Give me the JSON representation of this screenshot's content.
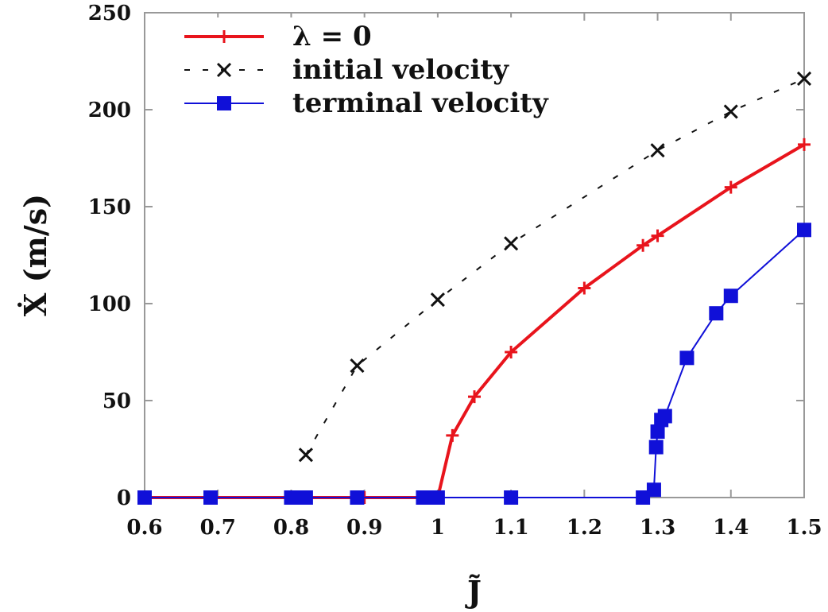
{
  "chart_data": {
    "type": "line",
    "title": "",
    "xlabel": "J̃",
    "ylabel": "Ẋ (m/s)",
    "xlim": [
      0.6,
      1.5
    ],
    "ylim": [
      0,
      250
    ],
    "xticks": [
      "0.6",
      "0.7",
      "0.8",
      "0.9",
      "1",
      "1.1",
      "1.2",
      "1.3",
      "1.4",
      "1.5"
    ],
    "yticks": [
      "0",
      "50",
      "100",
      "150",
      "200",
      "250"
    ],
    "grid": false,
    "legend_position": "top-left",
    "series": [
      {
        "name": "λ = 0",
        "color": "#e8141c",
        "style": "solid",
        "marker": "plus",
        "x": [
          0.6,
          0.69,
          0.8,
          0.9,
          0.98,
          1.0,
          1.02,
          1.05,
          1.1,
          1.2,
          1.28,
          1.3,
          1.4,
          1.5
        ],
        "y": [
          0,
          0,
          0,
          0,
          0,
          0,
          32,
          52,
          75,
          108,
          130,
          135,
          160,
          182
        ]
      },
      {
        "name": "initial velocity",
        "color": "#111111",
        "style": "dashed",
        "marker": "x",
        "x": [
          0.82,
          0.89,
          1.0,
          1.1,
          1.3,
          1.4,
          1.5
        ],
        "y": [
          22,
          68,
          102,
          131,
          179,
          199,
          216
        ]
      },
      {
        "name": "terminal velocity",
        "color": "#1010d8",
        "style": "solid",
        "marker": "square",
        "x": [
          0.6,
          0.69,
          0.8,
          0.81,
          0.82,
          0.89,
          0.98,
          0.99,
          1.0,
          1.1,
          1.28,
          1.295,
          1.298,
          1.3,
          1.305,
          1.31,
          1.34,
          1.38,
          1.4,
          1.5
        ],
        "y": [
          0,
          0,
          0,
          0,
          0,
          0,
          0,
          0,
          0,
          0,
          0,
          4,
          26,
          34,
          40,
          42,
          72,
          95,
          104,
          138
        ]
      }
    ]
  }
}
